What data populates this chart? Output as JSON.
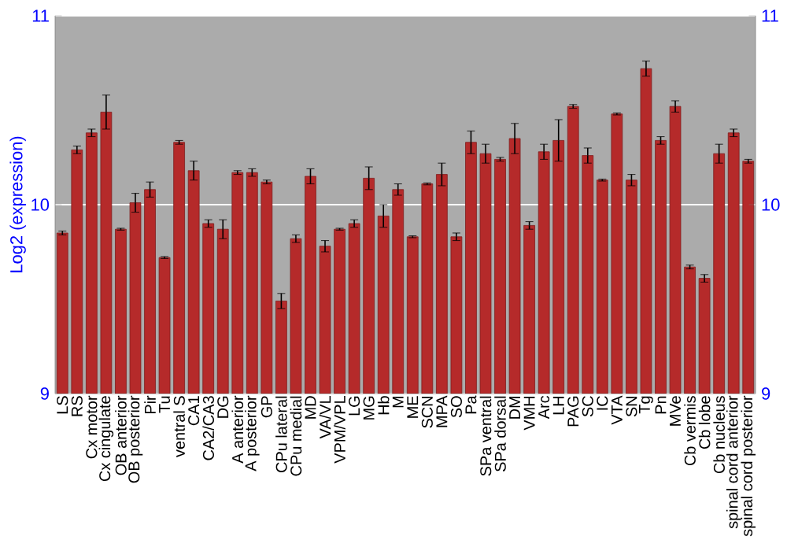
{
  "chart_data": {
    "type": "bar",
    "ylabel": "Log2 (expression)",
    "color": "#b52a2a",
    "categories": [
      "LS",
      "RS",
      "Cx motor",
      "Cx cingulate",
      "OB anterior",
      "OB posterior",
      "Pir",
      "Tu",
      "ventral S",
      "CA1",
      "CA2/CA3",
      "DG",
      "A anterior",
      "A posterior",
      "GP",
      "CPu lateral",
      "CPu medial",
      "MD",
      "VA/VL",
      "VPM/VPL",
      "LG",
      "MG",
      "Hb",
      "M",
      "ME",
      "SCN",
      "MPA",
      "SO",
      "Pa",
      "SPa ventral",
      "SPa dorsal",
      "DM",
      "VMH",
      "Arc",
      "LH",
      "PAG",
      "SC",
      "IC",
      "VTA",
      "SN",
      "Tg",
      "Pn",
      "MVe",
      "Cb vermis",
      "Cb lobe",
      "Cb nucleus",
      "spinal cord anterior",
      "spinal cord posterior"
    ],
    "values": [
      9.85,
      10.29,
      10.38,
      10.49,
      9.87,
      10.01,
      10.08,
      9.72,
      10.33,
      10.18,
      9.9,
      9.87,
      10.17,
      10.17,
      10.12,
      9.49,
      9.82,
      10.15,
      9.78,
      9.87,
      9.9,
      10.14,
      9.94,
      10.08,
      9.83,
      10.11,
      10.16,
      9.83,
      10.33,
      10.27,
      10.24,
      10.35,
      9.89,
      10.28,
      10.34,
      10.52,
      10.26,
      10.13,
      10.48,
      10.13,
      10.72,
      10.34,
      10.52,
      9.67,
      9.61,
      10.27,
      10.38,
      10.23
    ],
    "errors": [
      0.01,
      0.02,
      0.02,
      0.09,
      0.005,
      0.05,
      0.04,
      0.005,
      0.01,
      0.05,
      0.02,
      0.05,
      0.01,
      0.02,
      0.01,
      0.04,
      0.02,
      0.04,
      0.03,
      0.005,
      0.02,
      0.06,
      0.06,
      0.03,
      0.005,
      0.005,
      0.06,
      0.02,
      0.06,
      0.05,
      0.01,
      0.08,
      0.02,
      0.04,
      0.11,
      0.01,
      0.04,
      0.005,
      0.005,
      0.03,
      0.04,
      0.02,
      0.03,
      0.01,
      0.02,
      0.05,
      0.02,
      0.01
    ],
    "ylim": [
      9,
      11
    ],
    "yticks": [
      9,
      10,
      11
    ],
    "y2lim": [
      9,
      11
    ],
    "y2ticks": [
      9,
      10,
      11
    ],
    "grid": "y"
  }
}
